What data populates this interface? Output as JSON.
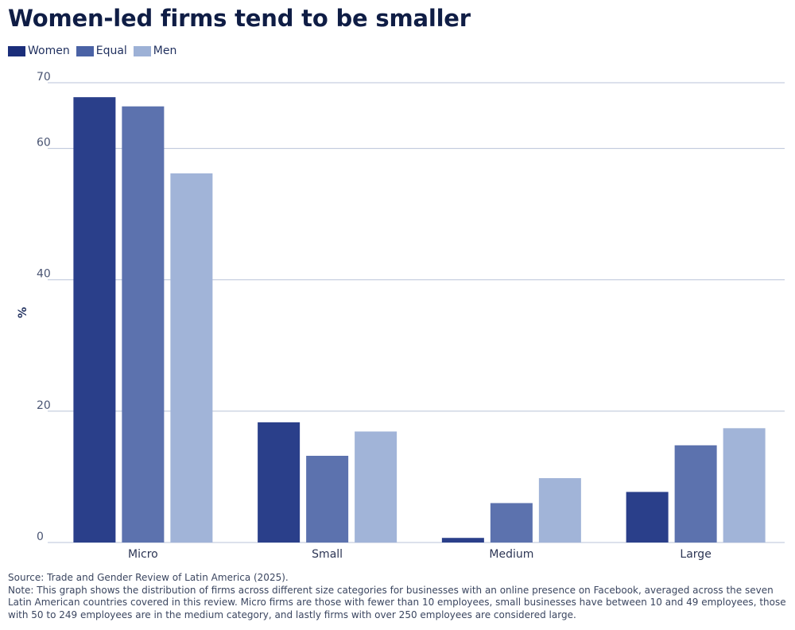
{
  "title": "Women-led firms tend to be smaller",
  "legend": [
    {
      "label": "Women",
      "color": "#2a3f8a"
    },
    {
      "label": "Equal",
      "color": "#5c72ae"
    },
    {
      "label": "Men",
      "color": "#a1b4d8"
    }
  ],
  "chart_data": {
    "type": "bar",
    "title": "Women-led firms tend to be smaller",
    "xlabel": "",
    "ylabel": "%",
    "ylim": [
      0,
      70
    ],
    "yticks": [
      0,
      20,
      40,
      60,
      70
    ],
    "categories": [
      "Micro",
      "Small",
      "Medium",
      "Large"
    ],
    "series": [
      {
        "name": "Women",
        "color": "#2a3f8a",
        "values": [
          67.8,
          18.3,
          0.7,
          7.7
        ]
      },
      {
        "name": "Equal",
        "color": "#5c72ae",
        "values": [
          66.4,
          13.2,
          6.0,
          14.8
        ]
      },
      {
        "name": "Men",
        "color": "#a1b4d8",
        "values": [
          56.2,
          16.9,
          9.8,
          17.4
        ]
      }
    ],
    "grid": true,
    "legend_position": "top-left"
  },
  "footer": {
    "source": "Source: Trade and Gender Review of Latin America (2025).",
    "note": "Note: This graph shows the distribution of firms across different size categories for businesses with an online presence on Facebook, averaged across the seven Latin American countries covered in this review. Micro firms are those with fewer than 10 employees, small businesses have between 10 and 49 employees, those with 50 to 249 employees are in the medium category, and lastly firms with over 250 employees are considered large."
  }
}
